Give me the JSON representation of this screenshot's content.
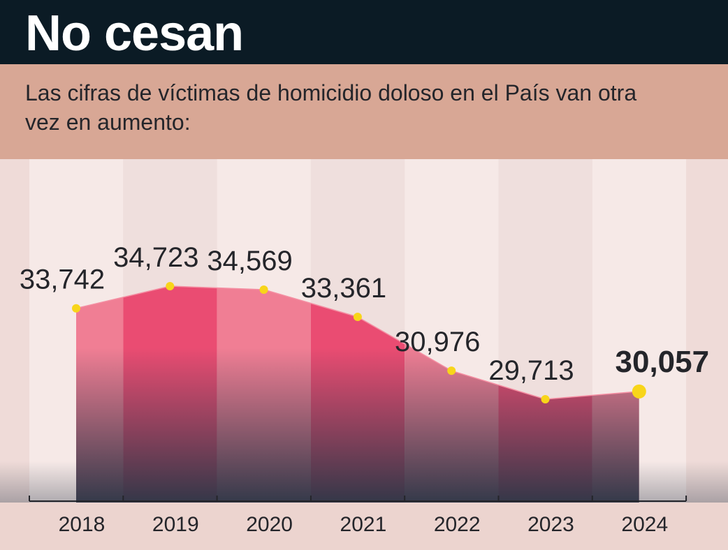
{
  "header": {
    "title": "No cesan",
    "subtitle": "Las cifras de víctimas de homicidio doloso en el País van otra vez en aumento:"
  },
  "colors": {
    "header_bg": "#0b1b25",
    "subtitle_bg": "#d8a795",
    "area_light": "#f07e94",
    "area_dark": "#ea4c72",
    "marker": "#f8d51a",
    "text": "#24252a"
  },
  "chart_data": {
    "type": "area",
    "title": "No cesan",
    "subtitle": "Las cifras de víctimas de homicidio doloso en el País van otra vez en aumento:",
    "categories": [
      "2018",
      "2019",
      "2020",
      "2021",
      "2022",
      "2023",
      "2024"
    ],
    "values": [
      33742,
      34723,
      34569,
      33361,
      30976,
      29713,
      30057
    ],
    "value_labels": [
      "33,742",
      "34,723",
      "34,569",
      "33,361",
      "30,976",
      "29,713",
      "30,057"
    ],
    "highlight_index": 6,
    "xlabel": "",
    "ylabel": "",
    "ylim": [
      22500,
      38500
    ],
    "grid": false,
    "legend": "none"
  }
}
